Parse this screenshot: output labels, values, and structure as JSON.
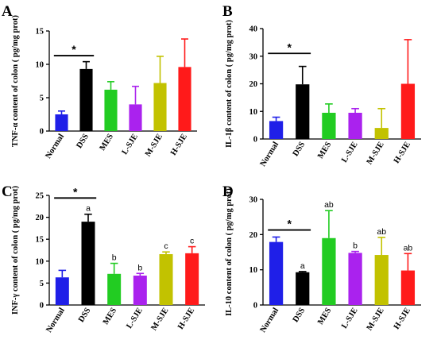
{
  "chart_data": [
    {
      "panel": "A",
      "type": "bar",
      "ylabel": "TNF-α content of colon ( pg/mg prot)",
      "categories": [
        "Normal",
        "DSS",
        "MES",
        "L-SJE",
        "M-SJE",
        "H-SJE"
      ],
      "values": [
        2.5,
        9.3,
        6.2,
        4.0,
        7.2,
        9.6
      ],
      "errors": [
        0.5,
        1.1,
        1.2,
        2.7,
        4.0,
        4.2
      ],
      "colors": [
        "#1f1fe8",
        "#000000",
        "#22cc22",
        "#aa22ee",
        "#c2c200",
        "#ff1a1a"
      ],
      "ylim": [
        0,
        15
      ],
      "yticks": [
        0,
        5,
        10,
        15
      ],
      "significance": {
        "from": 0,
        "to": 1,
        "label": "*",
        "y": 11.3
      },
      "annotations": [
        "",
        "",
        "",
        "",
        "",
        ""
      ]
    },
    {
      "panel": "B",
      "type": "bar",
      "ylabel": "IL-1β content of colon ( pg/mg prot)",
      "categories": [
        "Normal",
        "DSS",
        "MES",
        "L-SJE",
        "M-SJE",
        "H-SJE"
      ],
      "values": [
        6.5,
        19.8,
        9.5,
        9.5,
        4.0,
        20.0
      ],
      "errors": [
        1.4,
        6.5,
        3.2,
        1.5,
        7.0,
        16.0
      ],
      "colors": [
        "#1f1fe8",
        "#000000",
        "#22cc22",
        "#aa22ee",
        "#c2c200",
        "#ff1a1a"
      ],
      "ylim": [
        0,
        40
      ],
      "yticks": [
        0,
        10,
        20,
        30,
        40
      ],
      "significance": {
        "from": 0,
        "to": 1,
        "label": "*",
        "y": 31
      },
      "annotations": [
        "",
        "",
        "",
        "",
        "",
        ""
      ]
    },
    {
      "panel": "C",
      "type": "bar",
      "ylabel": "INF-γ content of colon ( pg/mg prot)",
      "categories": [
        "Normal",
        "DSS",
        "MES",
        "L-SJE",
        "M-SJE",
        "H-SJE"
      ],
      "values": [
        6.3,
        19.0,
        7.1,
        6.7,
        11.6,
        11.8
      ],
      "errors": [
        1.6,
        1.7,
        2.4,
        0.5,
        0.5,
        1.5
      ],
      "colors": [
        "#1f1fe8",
        "#000000",
        "#22cc22",
        "#aa22ee",
        "#c2c200",
        "#ff1a1a"
      ],
      "ylim": [
        0,
        25
      ],
      "yticks": [
        0,
        5,
        10,
        15,
        20,
        25
      ],
      "significance": {
        "from": 0,
        "to": 1,
        "label": "*",
        "y": 24.4
      },
      "annotations": [
        "",
        "a",
        "b",
        "b",
        "c",
        "c"
      ]
    },
    {
      "panel": "D",
      "type": "bar",
      "ylabel": "IL-10 content of colon (  pg/mg prot)",
      "categories": [
        "Normal",
        "DSS",
        "MES",
        "L-SJE",
        "M-SJE",
        "H-SJE"
      ],
      "values": [
        17.9,
        9.3,
        19.0,
        14.8,
        14.2,
        9.8
      ],
      "errors": [
        1.4,
        0.2,
        7.8,
        0.4,
        5.0,
        4.8
      ],
      "colors": [
        "#1f1fe8",
        "#000000",
        "#22cc22",
        "#aa22ee",
        "#c2c200",
        "#ff1a1a"
      ],
      "ylim": [
        0,
        30
      ],
      "yticks": [
        0,
        10,
        20,
        30
      ],
      "significance": {
        "from": 0,
        "to": 1,
        "label": "*",
        "y": 21.3
      },
      "annotations": [
        "",
        "a",
        "ab",
        "b",
        "ab",
        "ab"
      ]
    }
  ]
}
